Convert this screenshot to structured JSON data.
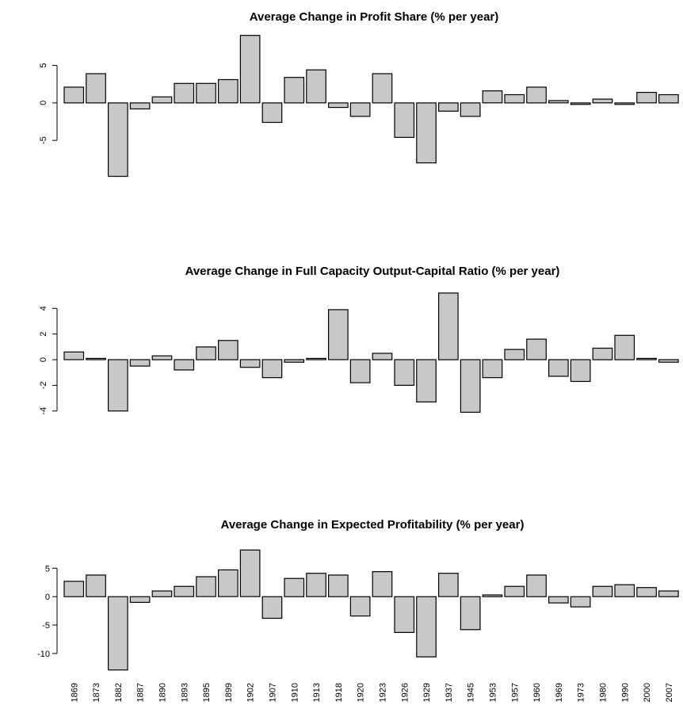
{
  "chart_data": [
    {
      "type": "bar",
      "title": "Average Change in Profit Share (% per year)",
      "yticks": [
        -5,
        0,
        5
      ],
      "ylim": [
        -9,
        9.5
      ],
      "bar_color": "#c8c8c8",
      "values": [
        2.1,
        3.9,
        -9.8,
        -0.8,
        0.8,
        2.6,
        2.6,
        3.1,
        9.0,
        -2.6,
        3.4,
        4.4,
        -0.6,
        -1.8,
        3.9,
        -4.6,
        -8.0,
        -1.1,
        -1.8,
        1.6,
        1.1,
        2.1,
        0.3,
        -0.2,
        0.5,
        -0.2,
        1.4,
        1.1
      ]
    },
    {
      "type": "bar",
      "title": "Average Change in Full Capacity Output-Capital Ratio (% per year)",
      "yticks": [
        -4,
        -2,
        0,
        2,
        4
      ],
      "ylim": [
        -5.0,
        5.5
      ],
      "bar_color": "#c8c8c8",
      "values": [
        0.6,
        0.1,
        -4.0,
        -0.5,
        0.3,
        -0.8,
        1.0,
        1.5,
        -0.6,
        -1.4,
        -0.2,
        0.1,
        3.9,
        -1.8,
        0.5,
        -2.0,
        -3.3,
        5.2,
        -4.1,
        -1.4,
        0.8,
        1.6,
        -1.3,
        -1.7,
        0.9,
        1.9,
        0.1,
        -0.2
      ]
    },
    {
      "type": "bar",
      "title": "Average Change in Expected Profitability (% per year)",
      "yticks": [
        -10,
        -5,
        0,
        5
      ],
      "ylim": [
        -13.5,
        9.5
      ],
      "bar_color": "#c8c8c8",
      "categories": [
        "1869",
        "1873",
        "1882",
        "1887",
        "1890",
        "1893",
        "1895",
        "1899",
        "1902",
        "1907",
        "1910",
        "1913",
        "1918",
        "1920",
        "1923",
        "1926",
        "1929",
        "1937",
        "1945",
        "1953",
        "1957",
        "1960",
        "1969",
        "1973",
        "1980",
        "1990",
        "2000",
        "2007"
      ],
      "values": [
        2.7,
        3.8,
        -12.9,
        -1.0,
        1.0,
        1.8,
        3.5,
        4.7,
        8.2,
        -3.8,
        3.2,
        4.1,
        3.8,
        -3.4,
        4.4,
        -6.3,
        -10.6,
        4.1,
        -5.8,
        0.3,
        1.8,
        3.8,
        -1.1,
        -1.8,
        1.8,
        2.1,
        1.6,
        1.0
      ]
    }
  ]
}
